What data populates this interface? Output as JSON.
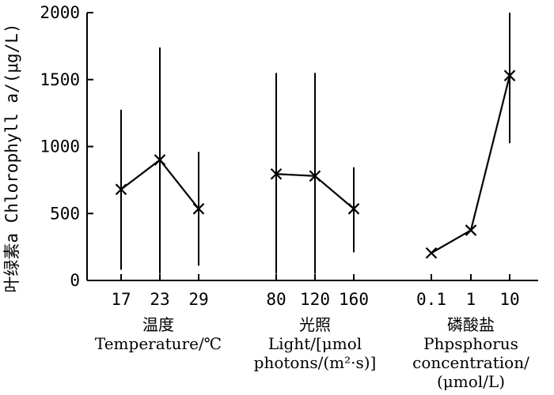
{
  "chart_data": {
    "type": "line",
    "ylabel": "叶绿素a Chlorophyll a/(μg/L)",
    "ylim": [
      0,
      2000
    ],
    "yticks": [
      0,
      500,
      1000,
      1500,
      2000
    ],
    "grid": false,
    "groups": [
      {
        "categories": [
          "17",
          "23",
          "29"
        ],
        "values": [
          680,
          900,
          535
        ],
        "err_low": [
          80,
          50,
          110
        ],
        "err_high": [
          1275,
          1740,
          960
        ],
        "label_lines": [
          "温度",
          "Temperature/℃"
        ]
      },
      {
        "categories": [
          "80",
          "120",
          "160"
        ],
        "values": [
          795,
          780,
          535
        ],
        "err_low": [
          50,
          50,
          210
        ],
        "err_high": [
          1550,
          1550,
          845
        ],
        "label_lines": [
          "光照",
          "Light/[μmol",
          "photons/(m²·s)]"
        ]
      },
      {
        "categories": [
          "0.1",
          "1",
          "10"
        ],
        "values": [
          205,
          375,
          1530
        ],
        "err_low": [
          205,
          375,
          1025
        ],
        "err_high": [
          205,
          375,
          2000
        ],
        "label_lines": [
          "磷酸盐",
          "Phpsphorus",
          "concentration/",
          "(μmol/L)"
        ]
      }
    ]
  }
}
